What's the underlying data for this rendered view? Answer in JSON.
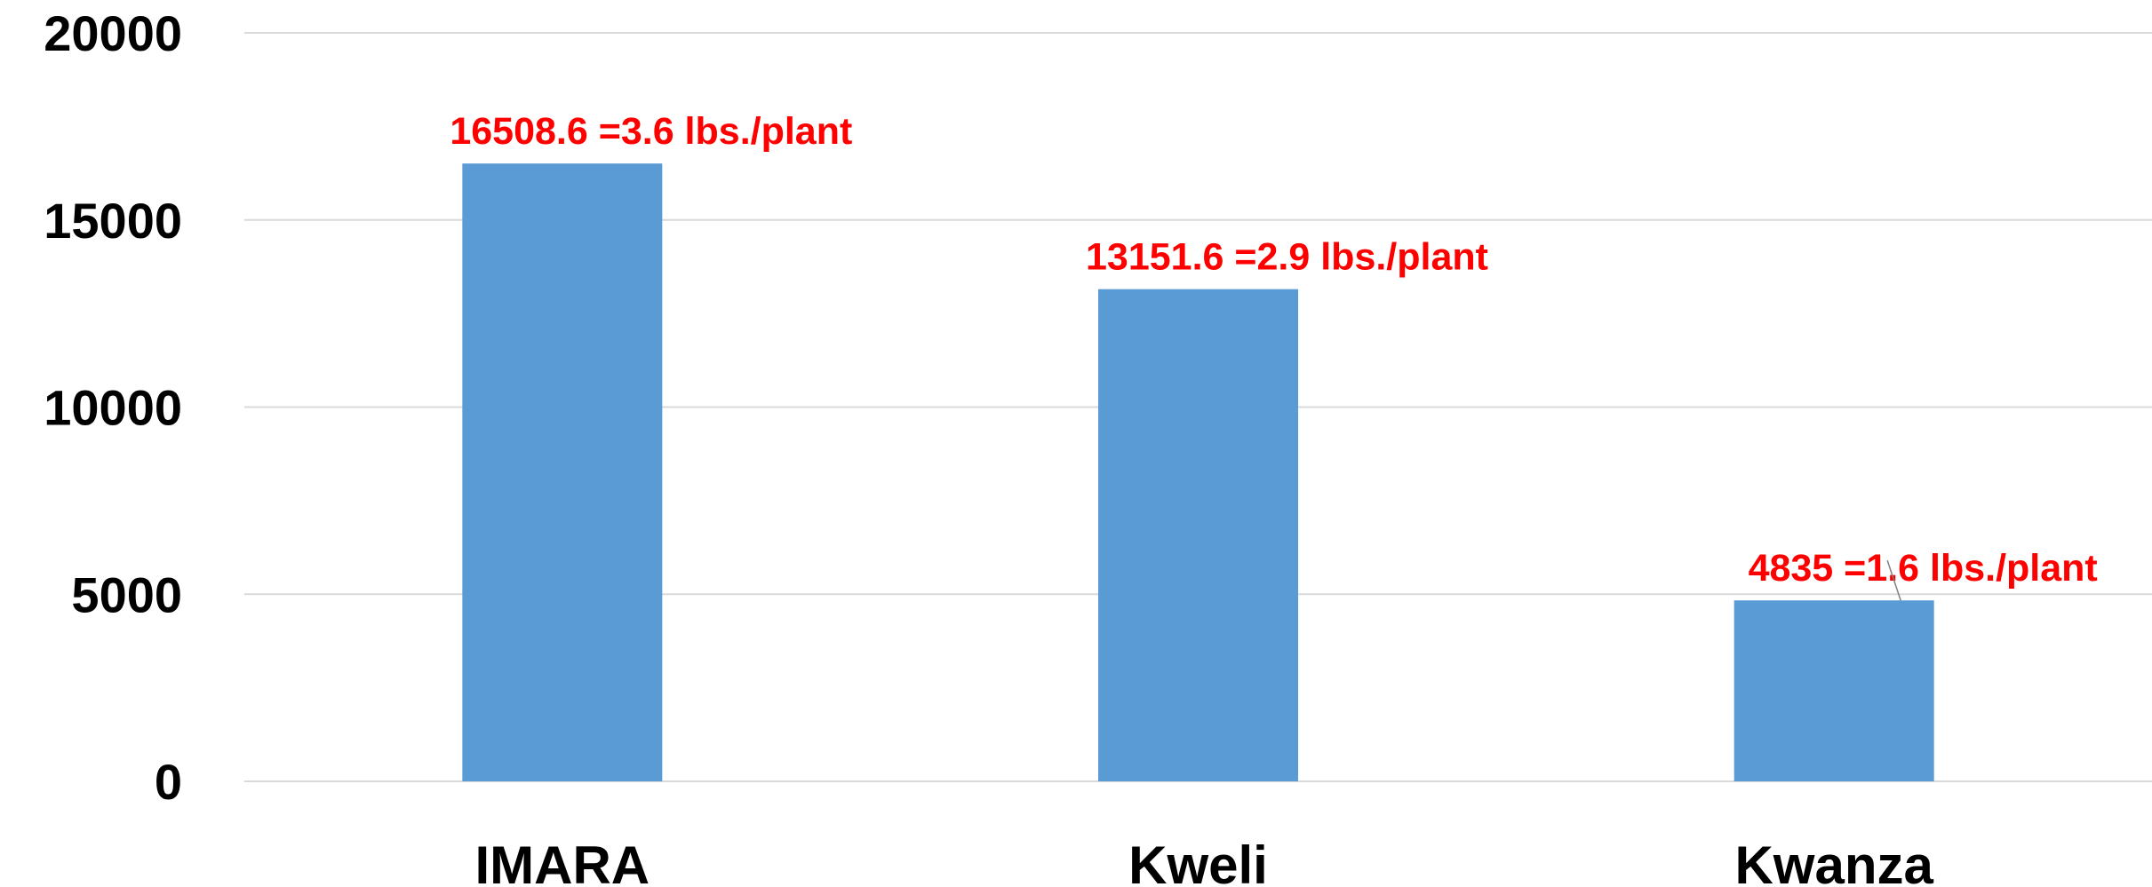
{
  "chart_data": {
    "type": "bar",
    "categories": [
      "IMARA",
      "Kweli",
      "Kwanza"
    ],
    "values": [
      16508.6,
      13151.6,
      4835
    ],
    "data_labels": [
      [
        "16508.6",
        "=3.6 lbs./plant"
      ],
      [
        "13151.6",
        "=2.9 lbs./plant"
      ],
      [
        "4835",
        "=1.6 lbs./plant"
      ]
    ],
    "ylim": [
      0,
      20000
    ],
    "yticks": [
      "0",
      "5000",
      "10000",
      "15000",
      "20000"
    ],
    "grid": true,
    "title": "",
    "xlabel": "",
    "ylabel": "",
    "colors": {
      "bar": "#5b9bd5",
      "label": "#ff0000",
      "grid": "#d9d9d9",
      "text": "#000000"
    }
  }
}
